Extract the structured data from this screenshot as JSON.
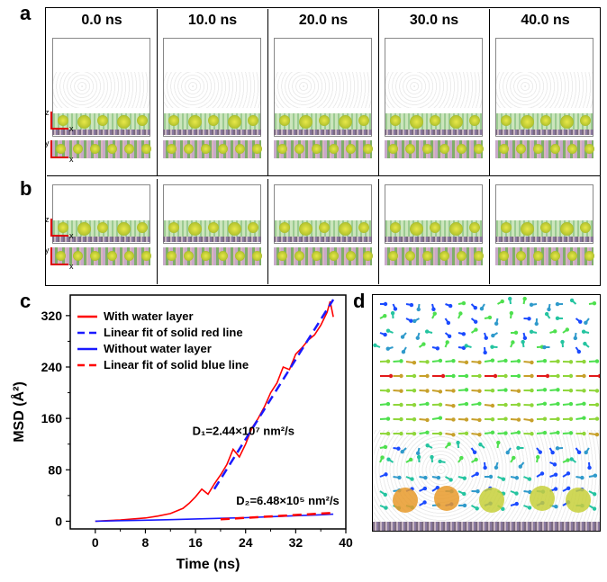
{
  "panels": {
    "a": "a",
    "b": "b",
    "c": "c",
    "d": "d"
  },
  "times": [
    "0.0 ns",
    "10.0 ns",
    "20.0 ns",
    "30.0 ns",
    "40.0 ns"
  ],
  "axes_labels": {
    "z": "z",
    "x": "x",
    "y": "y"
  },
  "chart_data": {
    "type": "line",
    "xlabel": "Time (ns)",
    "ylabel": "MSD (Å²)",
    "xlim": [
      -4,
      40
    ],
    "ylim": [
      -12,
      352
    ],
    "xticks": [
      0,
      8,
      16,
      24,
      32,
      40
    ],
    "yticks": [
      0,
      80,
      160,
      240,
      320
    ],
    "legend_placement": "top-left",
    "series": [
      {
        "name": "With water layer",
        "color": "#ff0000",
        "style": "solid",
        "x": [
          0,
          4,
          8,
          10,
          12,
          14,
          15,
          16,
          17,
          18,
          19,
          20,
          21,
          22,
          23,
          24,
          25,
          26,
          27,
          28,
          29,
          30,
          31,
          32,
          33,
          34,
          35,
          36,
          37,
          37.5,
          38
        ],
        "y": [
          0,
          2,
          5,
          8,
          12,
          20,
          28,
          38,
          50,
          42,
          58,
          72,
          88,
          112,
          100,
          120,
          145,
          160,
          178,
          200,
          215,
          240,
          236,
          260,
          270,
          282,
          290,
          305,
          325,
          342,
          318
        ]
      },
      {
        "name": "Linear fit of solid red line",
        "color": "#1a1aff",
        "style": "dashed",
        "x": [
          19,
          38
        ],
        "y": [
          50,
          345
        ]
      },
      {
        "name": "Without water layer",
        "color": "#1a1aff",
        "style": "solid",
        "x": [
          0,
          4,
          8,
          12,
          16,
          20,
          24,
          28,
          32,
          36,
          38
        ],
        "y": [
          0,
          0.8,
          1.5,
          2.5,
          3.5,
          4.5,
          5.5,
          7,
          8.5,
          10,
          11
        ]
      },
      {
        "name": "Linear fit of solid blue line",
        "color": "#ff0000",
        "style": "dashed",
        "x": [
          20,
          38
        ],
        "y": [
          3,
          13
        ]
      }
    ],
    "annotations": [
      {
        "text": "D₁=2.44×10⁷ nm²/s",
        "x": 15.5,
        "y": 134
      },
      {
        "text": "D₂=6.48×10⁵ nm²/s",
        "x": 22.5,
        "y": 26
      }
    ]
  },
  "colors": {
    "red": "#ff0000",
    "blue": "#1a1aff",
    "green": "#4fb83c",
    "yellow": "#d8d83a"
  }
}
